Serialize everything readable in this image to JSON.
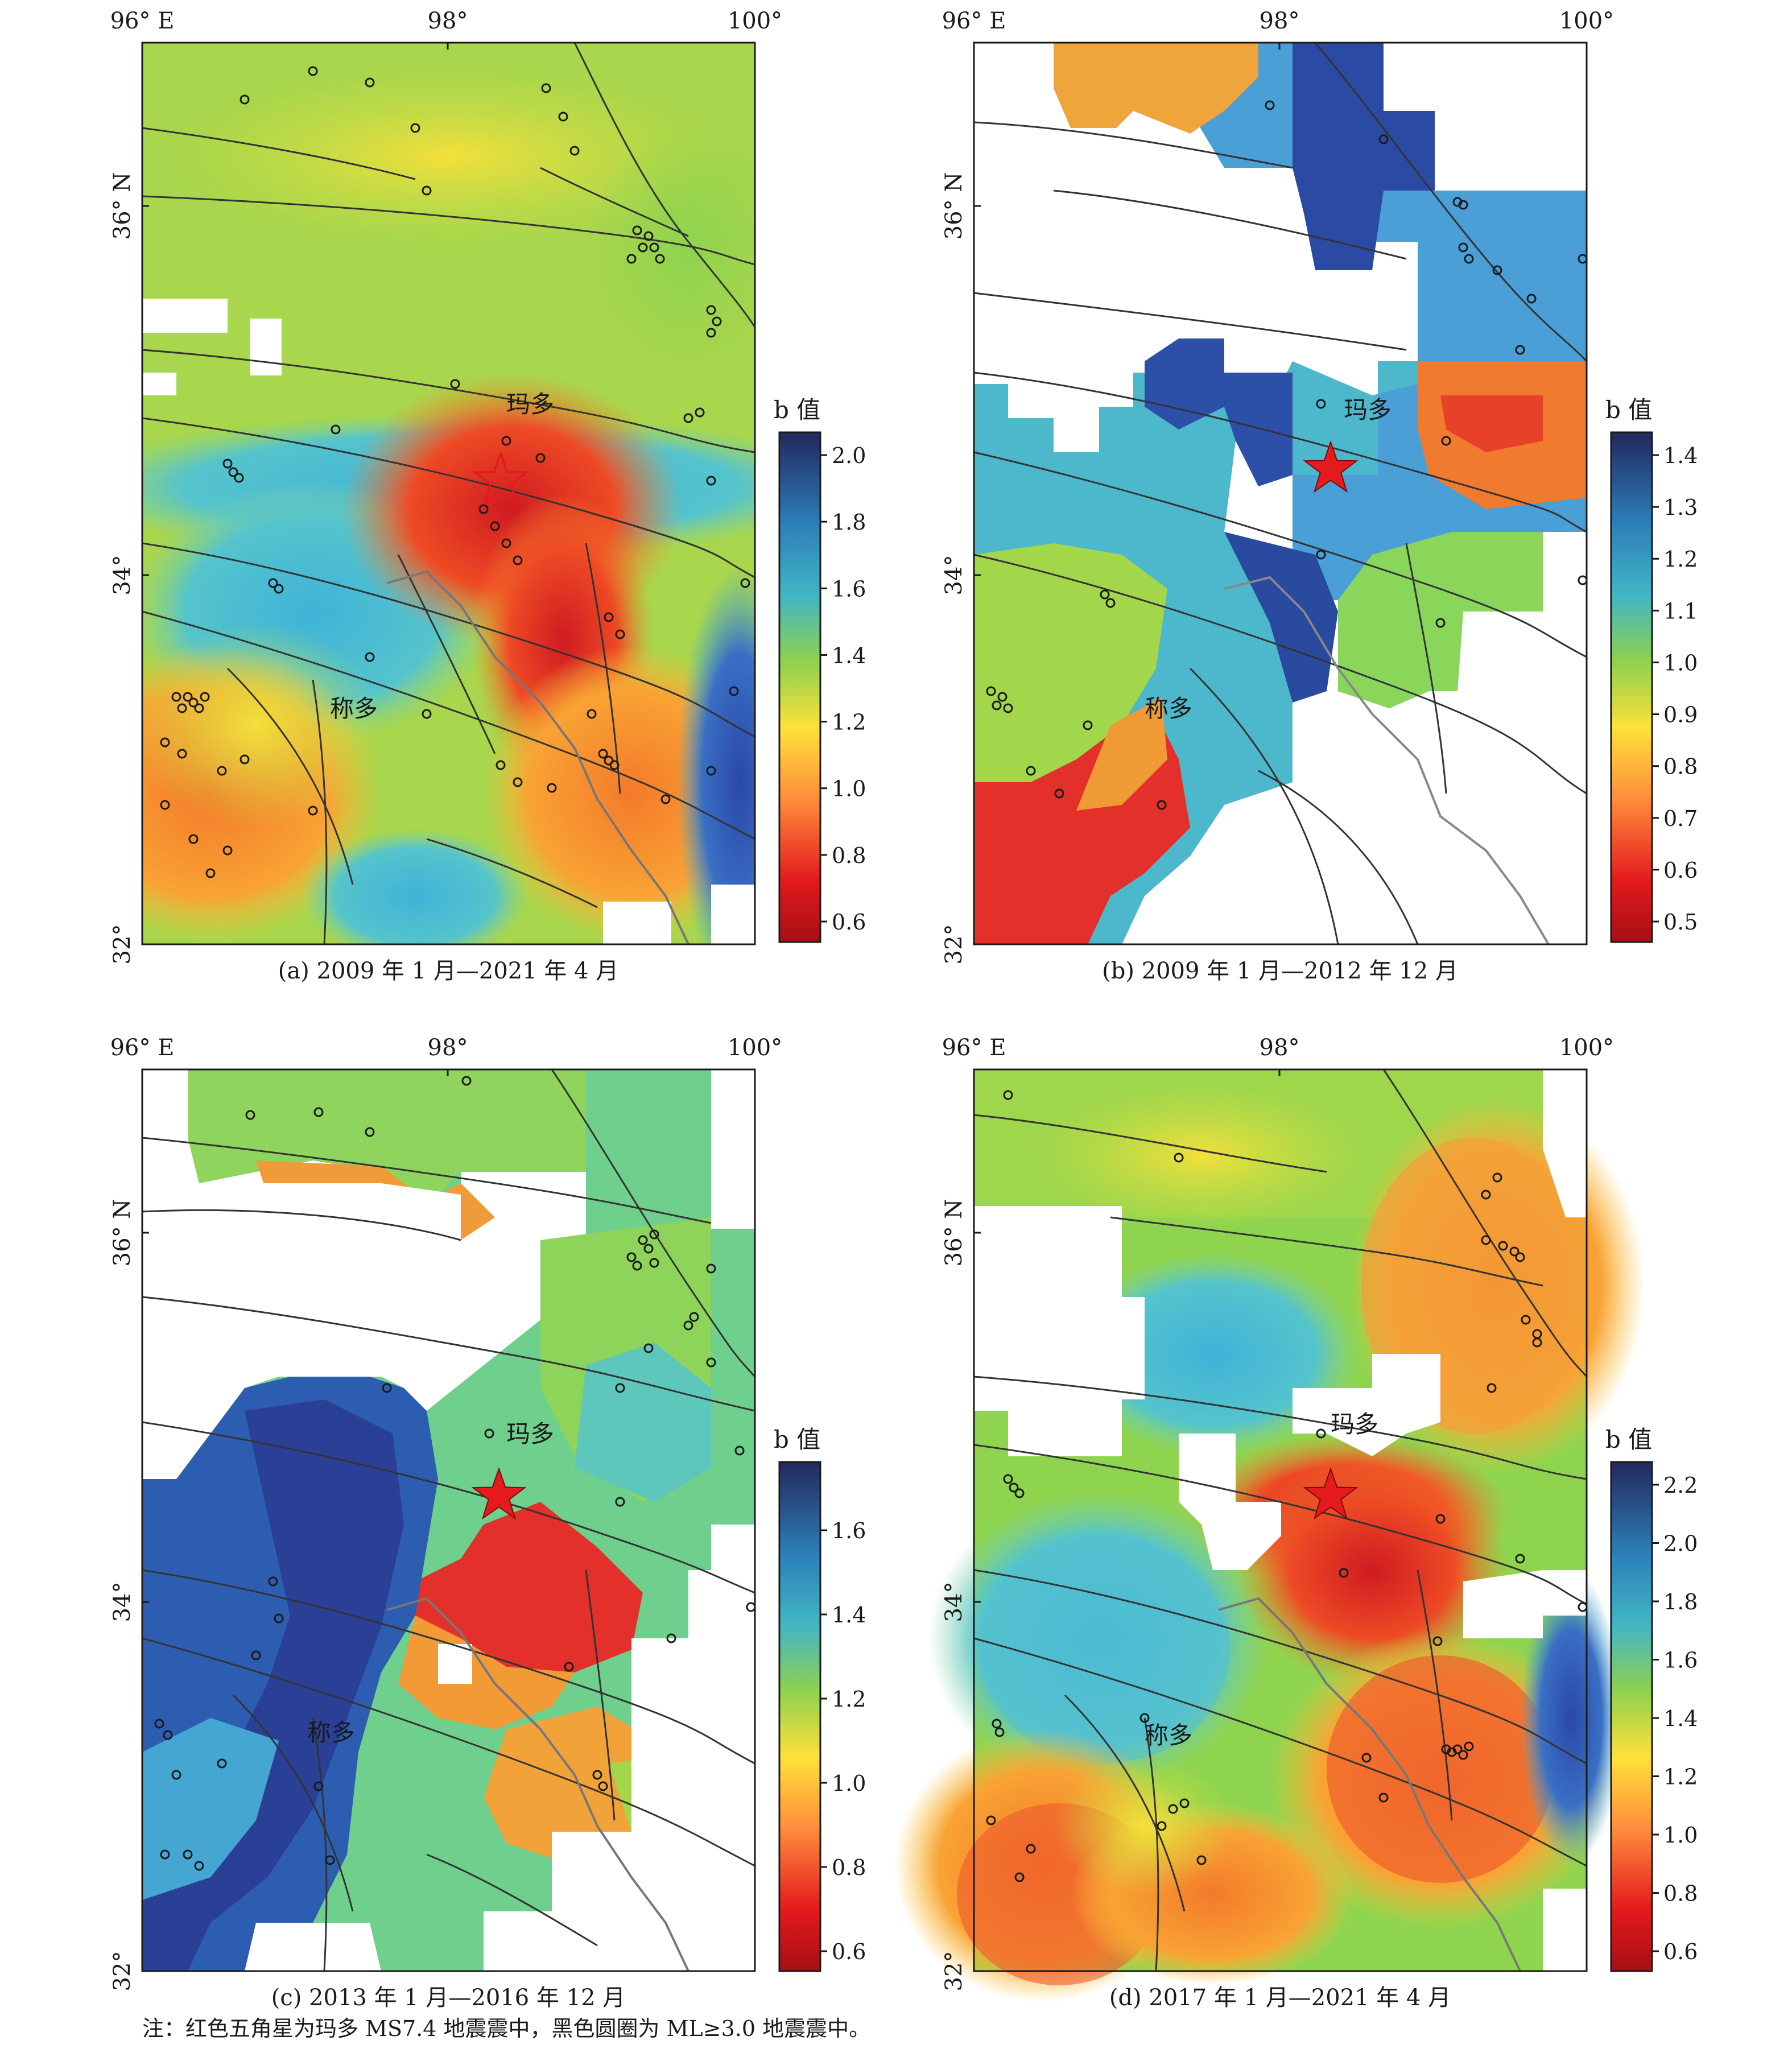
{
  "axis_labels": {
    "lon_96": "96° E",
    "lon_98": "98°",
    "lon_100": "100°",
    "lat_36": "36° N",
    "lat_34": "34°",
    "lat_32": "32°"
  },
  "colorbar_title": "b 值",
  "place_labels": {
    "maduo": "玛多",
    "chenduo": "称多"
  },
  "panels": [
    {
      "id": "a",
      "caption": "(a) 2009 年 1 月—2021 年 4 月",
      "colorbar_ticks": [
        "2.0",
        "1.8",
        "1.6",
        "1.4",
        "1.2",
        "1.0",
        "0.8",
        "0.6"
      ]
    },
    {
      "id": "b",
      "caption": "(b) 2009 年 1 月—2012 年 12 月",
      "colorbar_ticks": [
        "1.4",
        "1.3",
        "1.2",
        "1.1",
        "1.0",
        "0.9",
        "0.8",
        "0.7",
        "0.6",
        "0.5"
      ]
    },
    {
      "id": "c",
      "caption": "(c) 2013 年 1 月—2016 年 12 月",
      "colorbar_ticks": [
        "1.6",
        "1.4",
        "1.2",
        "1.0",
        "0.8",
        "0.6"
      ]
    },
    {
      "id": "d",
      "caption": "(d) 2017 年 1 月—2021 年 4 月",
      "colorbar_ticks": [
        "2.2",
        "2.0",
        "1.8",
        "1.6",
        "1.4",
        "1.2",
        "1.0",
        "0.8",
        "0.6"
      ]
    }
  ],
  "note": "注：红色五角星为玛多 MS7.4 地震震中，黑色圆圈为 ML≥3.0 地震震中。",
  "colors": {
    "high_b": "#2a2f7f",
    "mid_b": "#a5d44a",
    "low_b": "#d7191c",
    "star": "#e41a1c"
  }
}
